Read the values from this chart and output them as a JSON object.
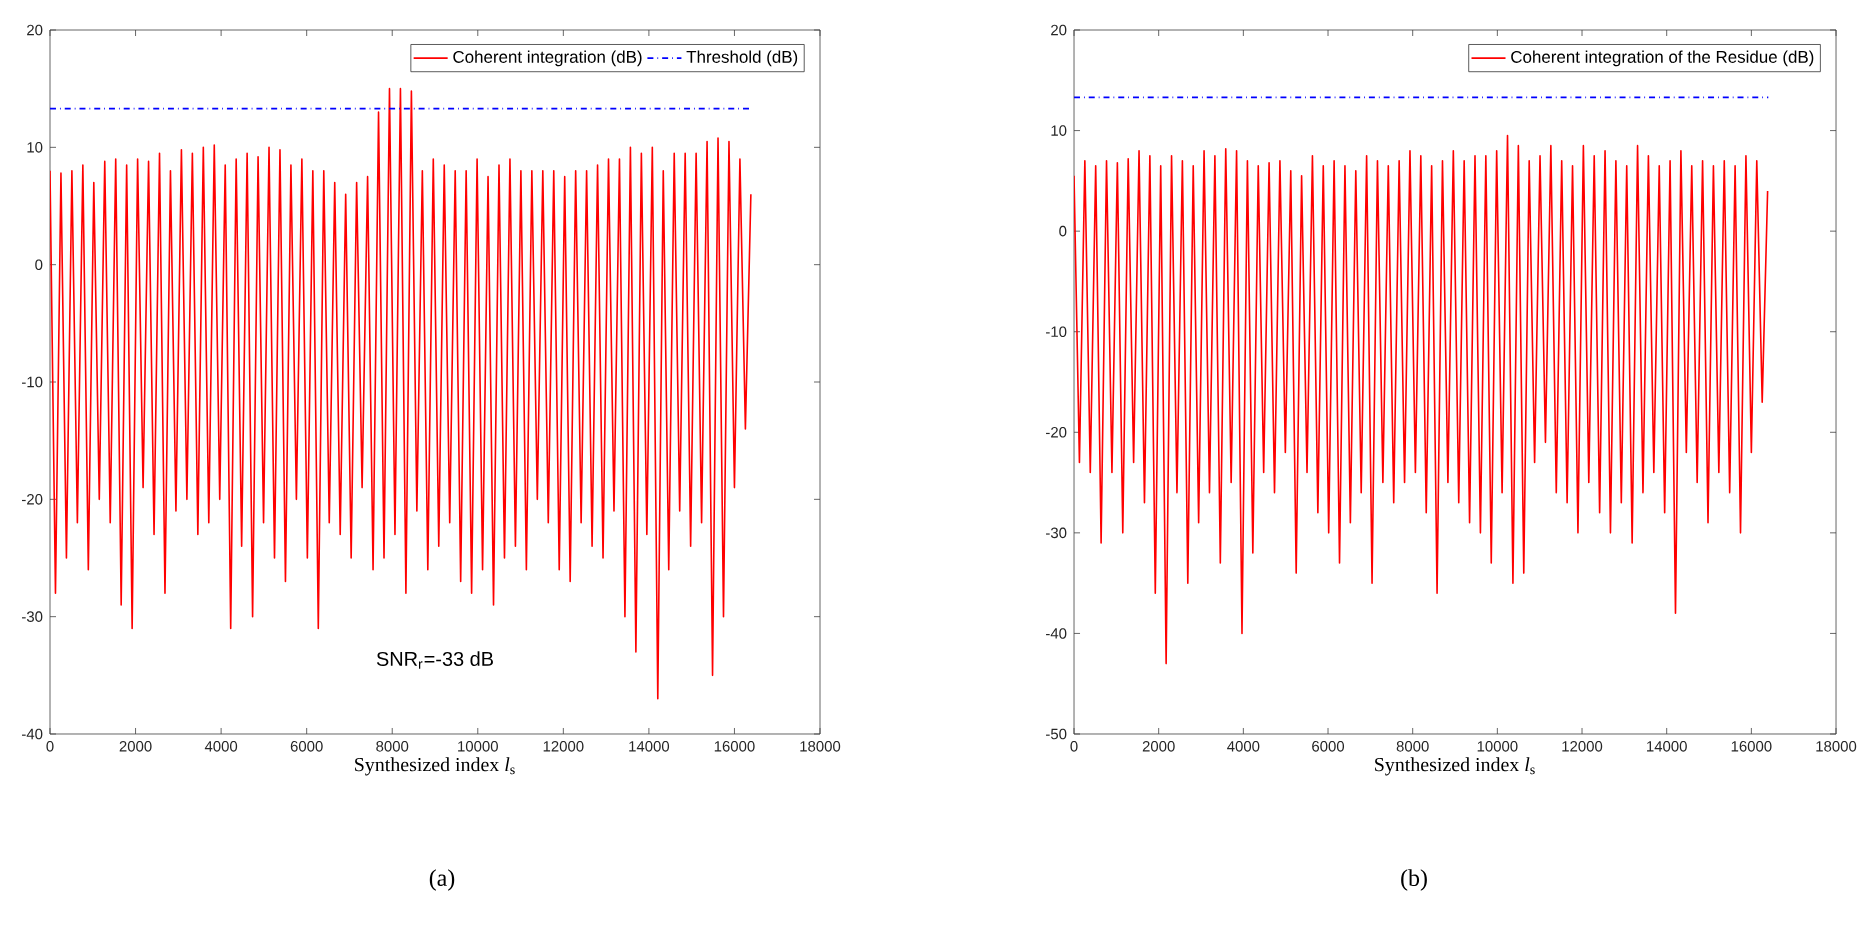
{
  "chart_data": [
    {
      "type": "line",
      "xlabel": "Synthesized index *l*$_{s}$",
      "xlim": [
        0,
        18000
      ],
      "xticks": [
        0,
        2000,
        4000,
        6000,
        8000,
        10000,
        12000,
        14000,
        16000,
        18000
      ],
      "ylim": [
        -40,
        20
      ],
      "yticks": [
        -40,
        -30,
        -20,
        -10,
        0,
        10,
        20
      ],
      "legend": "top right",
      "annotations": [
        "SNR$_{r}$=-33 dB",
        "(a)"
      ],
      "series": [
        {
          "name": "Coherent integration (dB)",
          "color": "#ff0000",
          "line_style": "solid",
          "x": [
            0,
            128,
            256,
            384,
            512,
            640,
            768,
            896,
            1024,
            1152,
            1280,
            1408,
            1536,
            1664,
            1792,
            1920,
            2048,
            2176,
            2304,
            2432,
            2560,
            2688,
            2816,
            2944,
            3072,
            3200,
            3328,
            3456,
            3584,
            3712,
            3840,
            3968,
            4096,
            4224,
            4352,
            4480,
            4608,
            4736,
            4864,
            4992,
            5120,
            5248,
            5376,
            5504,
            5632,
            5760,
            5888,
            6016,
            6144,
            6272,
            6400,
            6528,
            6656,
            6784,
            6912,
            7040,
            7168,
            7296,
            7424,
            7552,
            7680,
            7808,
            7936,
            8064,
            8192,
            8320,
            8448,
            8576,
            8704,
            8832,
            8960,
            9088,
            9216,
            9344,
            9472,
            9600,
            9728,
            9856,
            9984,
            10112,
            10240,
            10368,
            10496,
            10624,
            10752,
            10880,
            11008,
            11136,
            11264,
            11392,
            11520,
            11648,
            11776,
            11904,
            12032,
            12160,
            12288,
            12416,
            12544,
            12672,
            12800,
            12928,
            13056,
            13184,
            13312,
            13440,
            13568,
            13696,
            13824,
            13952,
            14080,
            14208,
            14336,
            14464,
            14592,
            14720,
            14848,
            14976,
            15104,
            15232,
            15360,
            15488,
            15616,
            15744,
            15872,
            16000,
            16128,
            16256,
            16384
          ],
          "values": [
            8,
            -28,
            7.8,
            -25,
            8,
            -22,
            8.5,
            -26,
            7,
            -20,
            8.8,
            -22,
            9,
            -29,
            8.5,
            -31,
            9,
            -19,
            8.8,
            -23,
            9.5,
            -28,
            8,
            -21,
            9.8,
            -20,
            9.5,
            -23,
            10,
            -22,
            10.2,
            -20,
            8.5,
            -31,
            9,
            -24,
            9.5,
            -30,
            9.2,
            -22,
            10,
            -25,
            9.8,
            -27,
            8.5,
            -20,
            9,
            -25,
            8,
            -31,
            8,
            -22,
            7,
            -23,
            6,
            -25,
            7,
            -19,
            7.5,
            -26,
            13,
            -25,
            15,
            -23,
            15,
            -28,
            14.8,
            -21,
            8,
            -26,
            9,
            -24,
            8.5,
            -22,
            8,
            -27,
            8,
            -28,
            9,
            -26,
            7.5,
            -29,
            8.5,
            -25,
            9,
            -24,
            8,
            -26,
            8,
            -20,
            8,
            -22,
            8,
            -26,
            7.5,
            -27,
            8,
            -22,
            8,
            -24,
            8.5,
            -25,
            9,
            -21,
            9,
            -30,
            10,
            -33,
            9.5,
            -23,
            10,
            -37,
            8,
            -26,
            9.5,
            -21,
            9.5,
            -24,
            9.5,
            -22,
            10.5,
            -35,
            10.8,
            -30,
            10.5,
            -19,
            9,
            -14,
            6
          ]
        },
        {
          "name": "Threshold (dB)",
          "color": "#0000ff",
          "line_style": "dashdot",
          "x": [
            0,
            16400
          ],
          "values": [
            13.3,
            13.3
          ]
        }
      ]
    },
    {
      "type": "line",
      "xlabel": "Synthesized index *l*$_{s}$",
      "xlim": [
        0,
        18000
      ],
      "xticks": [
        0,
        2000,
        4000,
        6000,
        8000,
        10000,
        12000,
        14000,
        16000,
        18000
      ],
      "ylim": [
        -50,
        20
      ],
      "yticks": [
        -50,
        -40,
        -30,
        -20,
        -10,
        0,
        10,
        20
      ],
      "legend": "top right",
      "annotations": [
        "(b)"
      ],
      "series": [
        {
          "name": "Coherent integration of the Residue (dB)",
          "color": "#ff0000",
          "line_style": "solid",
          "x": [
            0,
            128,
            256,
            384,
            512,
            640,
            768,
            896,
            1024,
            1152,
            1280,
            1408,
            1536,
            1664,
            1792,
            1920,
            2048,
            2176,
            2304,
            2432,
            2560,
            2688,
            2816,
            2944,
            3072,
            3200,
            3328,
            3456,
            3584,
            3712,
            3840,
            3968,
            4096,
            4224,
            4352,
            4480,
            4608,
            4736,
            4864,
            4992,
            5120,
            5248,
            5376,
            5504,
            5632,
            5760,
            5888,
            6016,
            6144,
            6272,
            6400,
            6528,
            6656,
            6784,
            6912,
            7040,
            7168,
            7296,
            7424,
            7552,
            7680,
            7808,
            7936,
            8064,
            8192,
            8320,
            8448,
            8576,
            8704,
            8832,
            8960,
            9088,
            9216,
            9344,
            9472,
            9600,
            9728,
            9856,
            9984,
            10112,
            10240,
            10368,
            10496,
            10624,
            10752,
            10880,
            11008,
            11136,
            11264,
            11392,
            11520,
            11648,
            11776,
            11904,
            12032,
            12160,
            12288,
            12416,
            12544,
            12672,
            12800,
            12928,
            13056,
            13184,
            13312,
            13440,
            13568,
            13696,
            13824,
            13952,
            14080,
            14208,
            14336,
            14464,
            14592,
            14720,
            14848,
            14976,
            15104,
            15232,
            15360,
            15488,
            15616,
            15744,
            15872,
            16000,
            16128,
            16256,
            16384
          ],
          "values": [
            5.5,
            -23,
            7,
            -24,
            6.5,
            -31,
            7,
            -24,
            6.8,
            -30,
            7.2,
            -23,
            8,
            -27,
            7.5,
            -36,
            6.5,
            -43,
            7.5,
            -26,
            7,
            -35,
            6.5,
            -29,
            8,
            -26,
            7.5,
            -33,
            8.2,
            -25,
            8,
            -40,
            7,
            -32,
            6.5,
            -24,
            6.8,
            -26,
            7,
            -22,
            6,
            -34,
            5.5,
            -24,
            7.5,
            -28,
            6.5,
            -30,
            7,
            -33,
            6.5,
            -29,
            6,
            -26,
            7.5,
            -35,
            7,
            -25,
            6.5,
            -27,
            7,
            -25,
            8,
            -24,
            7.5,
            -28,
            6.5,
            -36,
            7,
            -25,
            8,
            -27,
            7,
            -29,
            7.5,
            -30,
            7.5,
            -33,
            8,
            -26,
            9.5,
            -35,
            8.5,
            -34,
            7,
            -23,
            7.5,
            -21,
            8.5,
            -26,
            7,
            -27,
            6.5,
            -30,
            8.5,
            -25,
            7.5,
            -28,
            8,
            -30,
            7,
            -27,
            6.5,
            -31,
            8.5,
            -26,
            7.5,
            -24,
            6.5,
            -28,
            7,
            -38,
            8,
            -22,
            6.5,
            -25,
            7,
            -29,
            6.5,
            -24,
            7,
            -26,
            6.5,
            -30,
            7.5,
            -22,
            7,
            -17,
            4
          ]
        },
        {
          "color": "#0000ff",
          "line_style": "dashdot",
          "x": [
            0,
            16400
          ],
          "values": [
            13.3,
            13.3
          ]
        }
      ]
    }
  ]
}
